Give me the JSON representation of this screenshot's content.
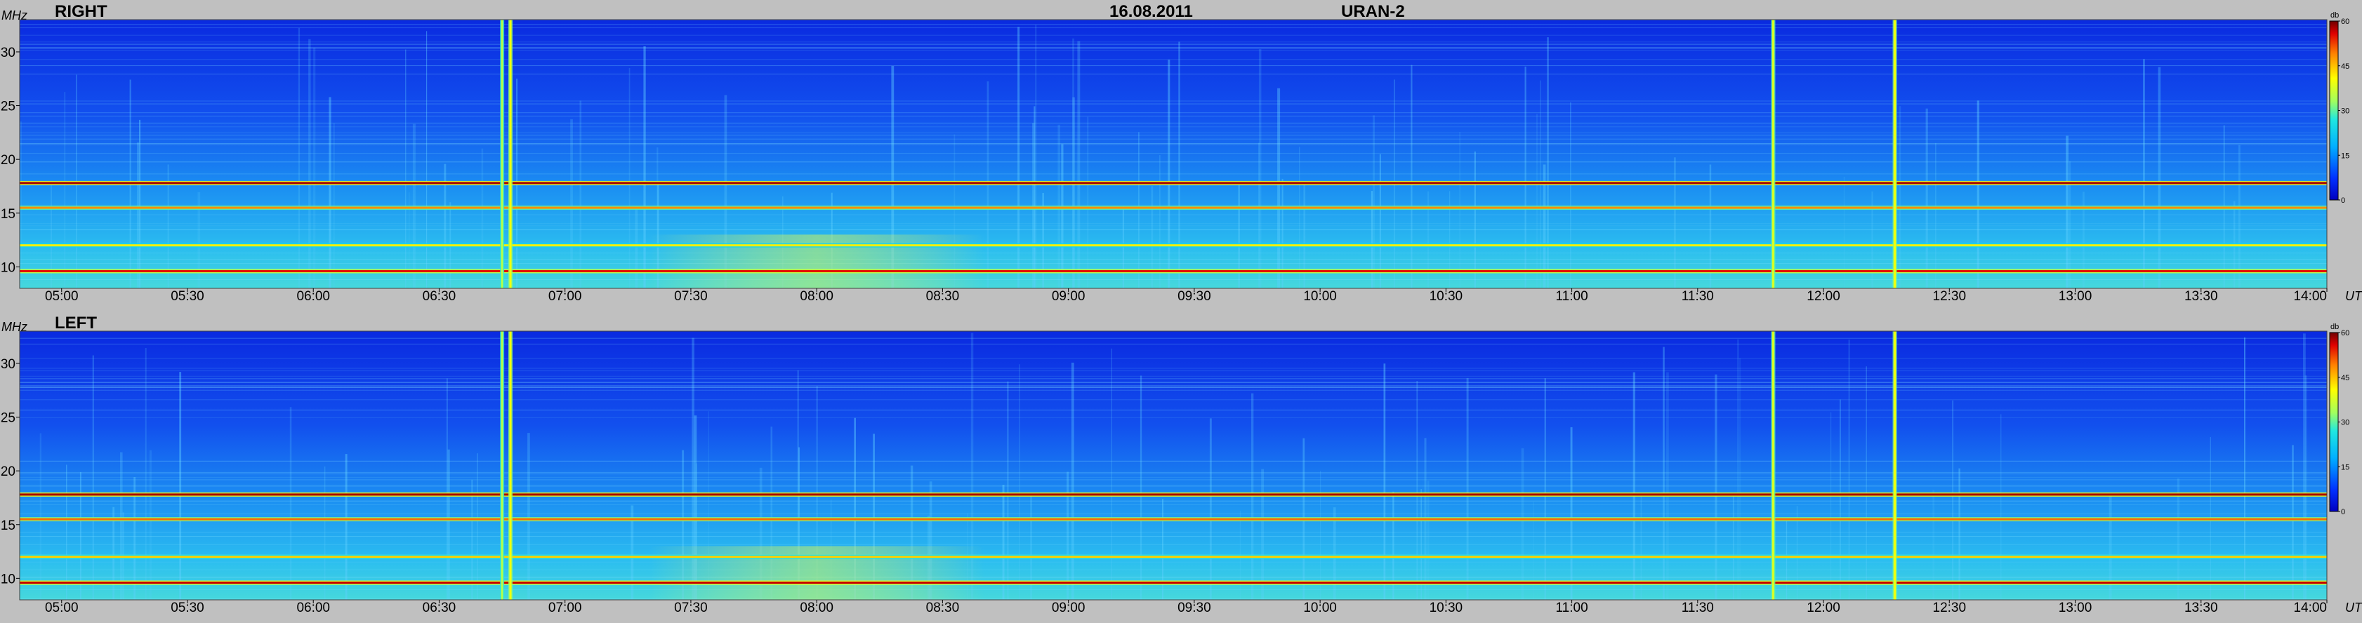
{
  "header": {
    "date": "16.08.2011",
    "instrument": "URAN-2"
  },
  "chart_data": [
    {
      "type": "heatmap",
      "title": "RIGHT",
      "ylabel": "MHz",
      "xlabel": "UT",
      "xlim": [
        "04:50",
        "14:00"
      ],
      "ylim": [
        8,
        33
      ],
      "y_ticks": [
        "10",
        "15",
        "20",
        "25",
        "30"
      ],
      "x_ticks": [
        "05:00",
        "05:30",
        "06:00",
        "06:30",
        "07:00",
        "07:30",
        "08:00",
        "08:30",
        "09:00",
        "09:30",
        "10:00",
        "10:30",
        "11:00",
        "11:30",
        "12:00",
        "12:30",
        "13:00",
        "13:30",
        "14:00"
      ],
      "colorbar": {
        "label": "db",
        "range": [
          0,
          60
        ],
        "ticks": [
          "0",
          "15",
          "30",
          "45",
          "60"
        ]
      },
      "bands_mhz": [
        {
          "freq": 9.6,
          "level": 55
        },
        {
          "freq": 12.0,
          "level": 42
        },
        {
          "freq": 15.5,
          "level": 48
        },
        {
          "freq": 17.8,
          "level": 58
        }
      ],
      "bursts_ut": [
        {
          "time": "06:45",
          "level": 35
        },
        {
          "time": "06:47",
          "level": 40
        },
        {
          "time": "11:48",
          "level": 38
        },
        {
          "time": "12:17",
          "level": 40
        }
      ]
    },
    {
      "type": "heatmap",
      "title": "LEFT",
      "ylabel": "MHz",
      "xlabel": "UT",
      "xlim": [
        "04:50",
        "14:00"
      ],
      "ylim": [
        8,
        33
      ],
      "y_ticks": [
        "10",
        "15",
        "20",
        "25",
        "30"
      ],
      "x_ticks": [
        "05:00",
        "05:30",
        "06:00",
        "06:30",
        "07:00",
        "07:30",
        "08:00",
        "08:30",
        "09:00",
        "09:30",
        "10:00",
        "10:30",
        "11:00",
        "11:30",
        "12:00",
        "12:30",
        "13:00",
        "13:30",
        "14:00"
      ],
      "colorbar": {
        "label": "db",
        "range": [
          0,
          60
        ],
        "ticks": [
          "0",
          "15",
          "30",
          "45",
          "60"
        ]
      },
      "bands_mhz": [
        {
          "freq": 9.6,
          "level": 57
        },
        {
          "freq": 12.0,
          "level": 44
        },
        {
          "freq": 15.5,
          "level": 50
        },
        {
          "freq": 17.8,
          "level": 58
        }
      ],
      "bursts_ut": [
        {
          "time": "06:45",
          "level": 35
        },
        {
          "time": "06:47",
          "level": 40
        },
        {
          "time": "11:48",
          "level": 38
        },
        {
          "time": "12:17",
          "level": 40
        }
      ]
    }
  ]
}
